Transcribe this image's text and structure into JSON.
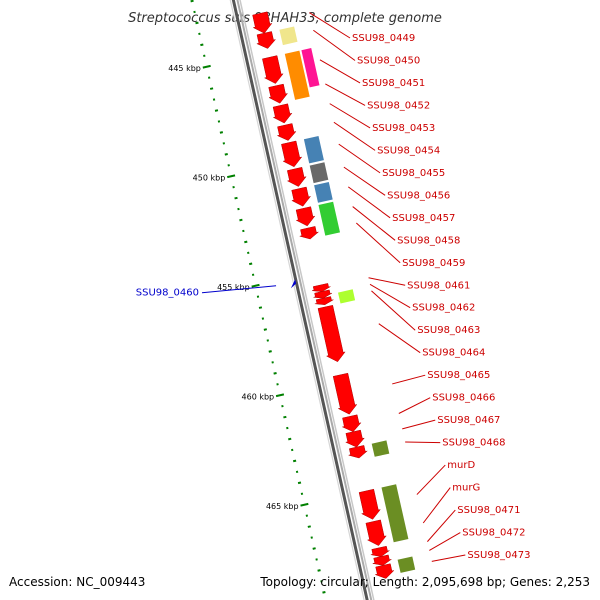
{
  "title": "Streptococcus suis 98HAH33, complete genome",
  "footer": {
    "accession": "Accession: NC_009443",
    "summary": "Topology: circular; Length: 2,095,698 bp; Genes: 2,253"
  },
  "ticks": [
    {
      "kbp": 445,
      "label": "445 kbp"
    },
    {
      "kbp": 450,
      "label": "450 kbp"
    },
    {
      "kbp": 455,
      "label": "455 kbp"
    },
    {
      "kbp": 460,
      "label": "460 kbp"
    },
    {
      "kbp": 465,
      "label": "465 kbp"
    }
  ],
  "forward_genes": [
    {
      "label": "SSU98_0449",
      "start": 443.2,
      "end": 444.1
    },
    {
      "label": "SSU98_0450",
      "start": 444.1,
      "end": 444.8
    },
    {
      "label": "SSU98_0451",
      "start": 445.2,
      "end": 446.4
    },
    {
      "label": "SSU98_0452",
      "start": 446.5,
      "end": 447.3
    },
    {
      "label": "SSU98_0453",
      "start": 447.4,
      "end": 448.2
    },
    {
      "label": "SSU98_0454",
      "start": 448.3,
      "end": 449.0
    },
    {
      "label": "SSU98_0455",
      "start": 449.1,
      "end": 450.2
    },
    {
      "label": "SSU98_0456",
      "start": 450.3,
      "end": 451.1
    },
    {
      "label": "SSU98_0457",
      "start": 451.2,
      "end": 452.0
    },
    {
      "label": "SSU98_0458",
      "start": 452.1,
      "end": 452.9
    },
    {
      "label": "SSU98_0459",
      "start": 453.0,
      "end": 453.5
    },
    {
      "label": "SSU98_0461",
      "start": 455.6,
      "end": 455.9
    },
    {
      "label": "SSU98_0462",
      "start": 455.9,
      "end": 456.2
    },
    {
      "label": "SSU98_0463",
      "start": 456.2,
      "end": 456.5
    },
    {
      "label": "SSU98_0464",
      "start": 456.6,
      "end": 459.1
    },
    {
      "label": "SSU98_0465",
      "start": 459.7,
      "end": 461.5
    },
    {
      "label": "SSU98_0466",
      "start": 461.6,
      "end": 462.3
    },
    {
      "label": "SSU98_0467",
      "start": 462.3,
      "end": 463.0
    },
    {
      "label": "SSU98_0468",
      "start": 463.0,
      "end": 463.5
    },
    {
      "label": "murD",
      "start": 465.0,
      "end": 466.3
    },
    {
      "label": "murG",
      "start": 466.4,
      "end": 467.5
    },
    {
      "label": "SSU98_0471",
      "start": 467.6,
      "end": 468.0
    },
    {
      "label": "SSU98_0472",
      "start": 468.0,
      "end": 468.4
    },
    {
      "label": "SSU98_0473",
      "start": 468.4,
      "end": 469.0
    }
  ],
  "reverse_genes": [
    {
      "label": "SSU98_0460",
      "start": 455.1,
      "end": 455.3
    }
  ],
  "feature_blocks": [
    {
      "ring": 1,
      "start": 444.1,
      "end": 444.8,
      "color": "#f0e68c"
    },
    {
      "ring": 1,
      "start": 445.2,
      "end": 447.3,
      "color": "#ff8c00"
    },
    {
      "ring": 2,
      "start": 445.2,
      "end": 446.9,
      "color": "#ff1493"
    },
    {
      "ring": 1,
      "start": 449.1,
      "end": 450.2,
      "color": "#4682b4"
    },
    {
      "ring": 1,
      "start": 450.3,
      "end": 451.1,
      "color": "#696969"
    },
    {
      "ring": 1,
      "start": 451.2,
      "end": 452.0,
      "color": "#4682b4"
    },
    {
      "ring": 1,
      "start": 452.1,
      "end": 453.5,
      "color": "#32cd32"
    },
    {
      "ring": 1,
      "start": 456.1,
      "end": 456.6,
      "color": "#adff2f"
    },
    {
      "ring": 1,
      "start": 463.0,
      "end": 463.6,
      "color": "#6b8e23"
    },
    {
      "ring": 1,
      "start": 465.0,
      "end": 467.5,
      "color": "#6b8e23"
    },
    {
      "ring": 1,
      "start": 468.3,
      "end": 468.9,
      "color": "#6b8e23"
    }
  ]
}
